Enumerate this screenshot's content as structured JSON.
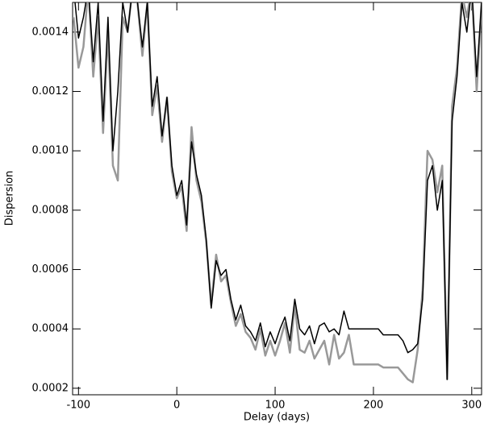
{
  "chart_data": {
    "type": "line",
    "xlabel": "Delay (days)",
    "ylabel": "Dispersion",
    "x": [
      -105,
      -100,
      -95,
      -90,
      -85,
      -80,
      -75,
      -70,
      -65,
      -60,
      -55,
      -50,
      -45,
      -40,
      -35,
      -30,
      -25,
      -20,
      -15,
      -10,
      -5,
      0,
      5,
      10,
      15,
      20,
      25,
      30,
      35,
      40,
      45,
      50,
      55,
      60,
      65,
      70,
      75,
      80,
      85,
      90,
      95,
      100,
      105,
      110,
      115,
      120,
      125,
      130,
      135,
      140,
      145,
      150,
      155,
      160,
      165,
      170,
      175,
      180,
      185,
      190,
      195,
      200,
      205,
      210,
      215,
      220,
      225,
      230,
      235,
      240,
      245,
      250,
      255,
      260,
      265,
      270,
      275,
      280,
      285,
      290,
      295,
      300,
      305,
      310
    ],
    "series": [
      {
        "name": "gray",
        "color": "#999999",
        "width": 2.5,
        "values": [
          0.00145,
          0.00128,
          0.00135,
          0.00155,
          0.00125,
          0.00145,
          0.00106,
          0.0014,
          0.00095,
          0.0009,
          0.00145,
          0.0014,
          0.00155,
          0.0015,
          0.00132,
          0.0015,
          0.00112,
          0.00122,
          0.00103,
          0.00118,
          0.00093,
          0.00084,
          0.00088,
          0.00073,
          0.00108,
          0.0009,
          0.00083,
          0.00069,
          0.00048,
          0.00065,
          0.00056,
          0.00058,
          0.00049,
          0.00041,
          0.00045,
          0.00039,
          0.00037,
          0.00033,
          0.0004,
          0.00031,
          0.00036,
          0.00031,
          0.00036,
          0.00042,
          0.00032,
          0.00048,
          0.00033,
          0.00032,
          0.00036,
          0.0003,
          0.00033,
          0.00036,
          0.00028,
          0.00038,
          0.0003,
          0.00032,
          0.00038,
          0.00028,
          0.00028,
          0.00028,
          0.00028,
          0.00028,
          0.00028,
          0.00027,
          0.00027,
          0.00027,
          0.00027,
          0.00025,
          0.00023,
          0.00022,
          0.00033,
          0.00053,
          0.001,
          0.00097,
          0.00086,
          0.00095,
          0.00023,
          0.00115,
          0.00128,
          0.00153,
          0.00145,
          0.00155,
          0.0012,
          0.0015
        ]
      },
      {
        "name": "black",
        "color": "#000000",
        "width": 1.5,
        "values": [
          0.00155,
          0.00138,
          0.00145,
          0.00155,
          0.0013,
          0.0015,
          0.0011,
          0.00145,
          0.001,
          0.0012,
          0.0015,
          0.0014,
          0.00155,
          0.0015,
          0.00135,
          0.0015,
          0.00115,
          0.00125,
          0.00105,
          0.00118,
          0.00095,
          0.00085,
          0.0009,
          0.00075,
          0.00103,
          0.00092,
          0.00085,
          0.0007,
          0.00047,
          0.00063,
          0.00058,
          0.0006,
          0.0005,
          0.00043,
          0.00048,
          0.00041,
          0.00039,
          0.00036,
          0.00042,
          0.00034,
          0.00039,
          0.00035,
          0.0004,
          0.00044,
          0.00036,
          0.0005,
          0.0004,
          0.00038,
          0.00041,
          0.00035,
          0.00041,
          0.00042,
          0.00039,
          0.0004,
          0.00038,
          0.00046,
          0.0004,
          0.0004,
          0.0004,
          0.0004,
          0.0004,
          0.0004,
          0.0004,
          0.00038,
          0.00038,
          0.00038,
          0.00038,
          0.00036,
          0.00032,
          0.00033,
          0.00035,
          0.0005,
          0.0009,
          0.00095,
          0.0008,
          0.0009,
          0.00023,
          0.0011,
          0.00125,
          0.0015,
          0.0014,
          0.00155,
          0.00125,
          0.0015
        ]
      }
    ],
    "xlim": [
      -106,
      310
    ],
    "ylim": [
      0.000178,
      0.0015
    ],
    "xticks": [
      -100,
      0,
      100,
      200,
      300
    ],
    "yticks": [
      0.0002,
      0.0004,
      0.0006,
      0.0008,
      {
        "value": 0.001,
        "label": "0.0010"
      },
      0.0012,
      0.0014
    ]
  }
}
